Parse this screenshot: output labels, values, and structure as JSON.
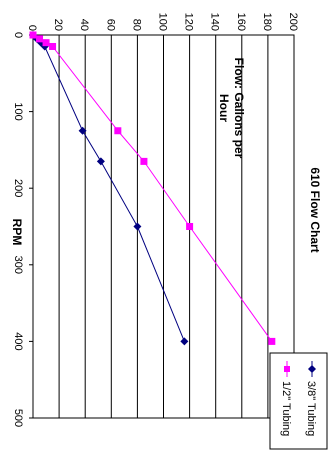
{
  "chart_data": {
    "type": "line",
    "title": "610 Flow Chart",
    "annotation_lines": [
      "Flow: Gallons per",
      "Hour"
    ],
    "xlabel": "RPM",
    "ylabel": "",
    "xlim": [
      0,
      500
    ],
    "ylim": [
      0,
      200
    ],
    "x_ticks": [
      0,
      100,
      200,
      300,
      400,
      500
    ],
    "y_ticks": [
      0,
      20,
      40,
      60,
      80,
      100,
      120,
      140,
      160,
      180,
      200
    ],
    "grid": "major horizontal gridlines",
    "legend_position": "right",
    "series": [
      {
        "name": "3/8\" Tubing",
        "color": "#000080",
        "marker": "diamond",
        "x": [
          0,
          5,
          10,
          15,
          125,
          165,
          250,
          400
        ],
        "y": [
          0,
          3,
          6,
          9,
          38,
          52,
          80,
          116
        ]
      },
      {
        "name": "1/2\" Tubing",
        "color": "#ff00ff",
        "marker": "square",
        "x": [
          0,
          5,
          10,
          15,
          125,
          165,
          250,
          400
        ],
        "y": [
          0,
          5,
          10,
          15,
          65,
          85,
          120,
          183
        ]
      }
    ]
  }
}
